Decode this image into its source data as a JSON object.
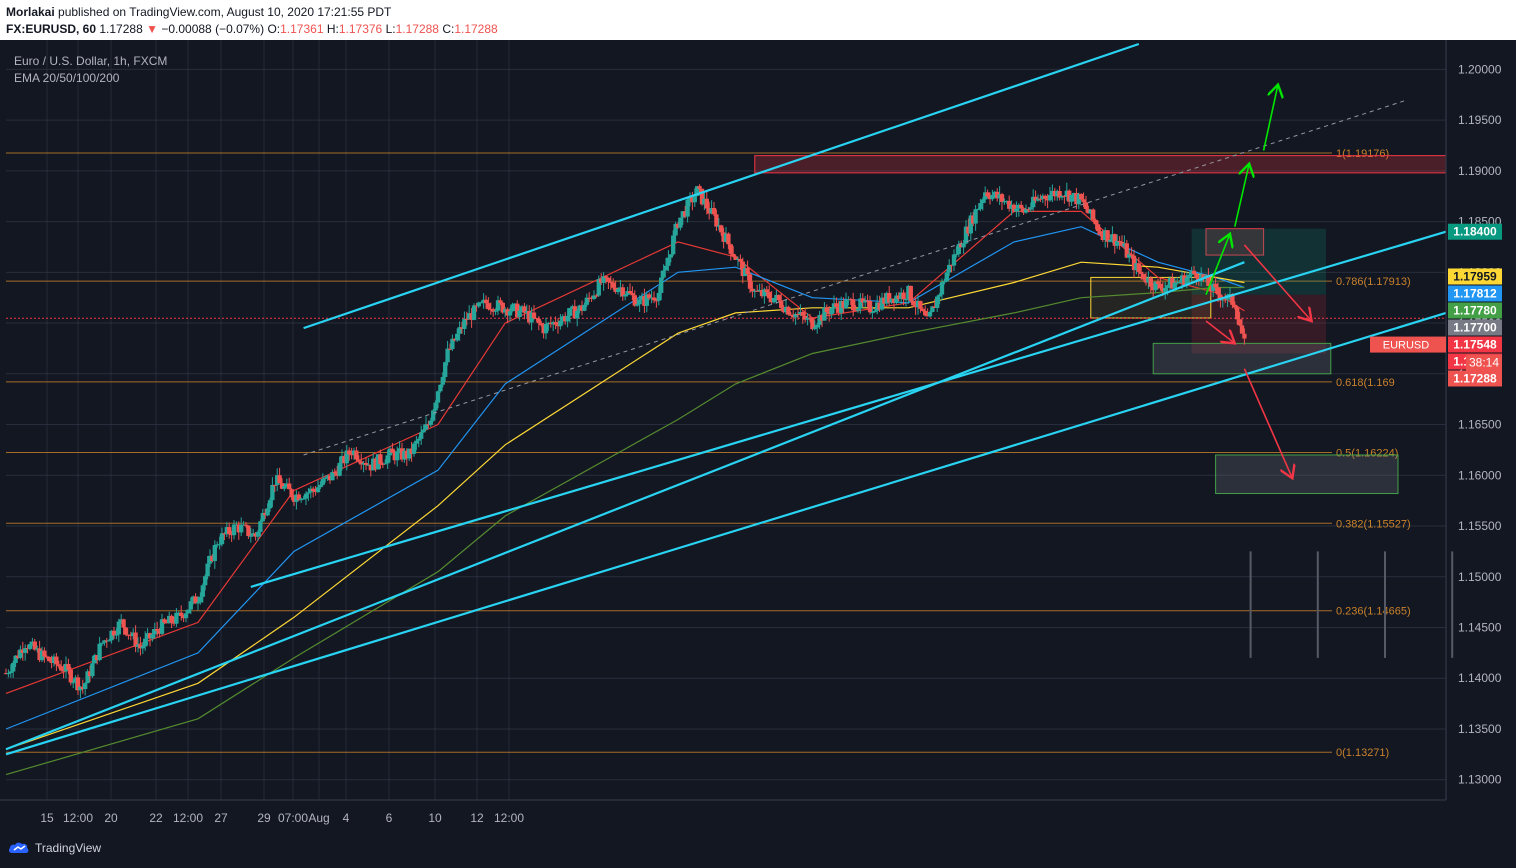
{
  "header": {
    "author": "Morlakai",
    "published_text": "published on TradingView.com, August 10, 2020 17:21:55 PDT",
    "symbol": "FX:EURUSD, 60",
    "last": "1.17288",
    "change": "−0.00088 (−0.07%)",
    "o_label": "O:",
    "o_value": "1.17361",
    "h_label": "H:",
    "h_value": "1.17376",
    "l_label": "L:",
    "l_value": "1.17288",
    "c_label": "C:",
    "c_value": "1.17288"
  },
  "legend": {
    "title": "Euro / U.S. Dollar, 1h, FXCM",
    "indicator": "EMA 20/50/100/200"
  },
  "footer": {
    "brand": "TradingView"
  },
  "colors": {
    "bg": "#131722",
    "grid": "#363c4e",
    "text": "#b2b5be",
    "up": "#26a69a",
    "down": "#ef5350",
    "channel": "#29d3f2",
    "fib": "#c9822b",
    "ema20": "#e53935",
    "ema50": "#2196f3",
    "ema100": "#fdd835",
    "ema200": "#558b2f"
  },
  "chart_data": {
    "type": "candlestick",
    "title": "Euro / U.S. Dollar, 1h, FXCM",
    "ylim": [
      1.128,
      1.2025
    ],
    "y_ticks": [
      "1.20000",
      "1.19500",
      "1.19000",
      "1.18500",
      "1.18000",
      "1.17500",
      "1.17000",
      "1.16500",
      "1.16000",
      "1.15500",
      "1.15000",
      "1.14500",
      "1.14000",
      "1.13500",
      "1.13000"
    ],
    "x_ticks": [
      "15",
      "12:00",
      "20",
      "22",
      "12:00",
      "27",
      "29",
      "07:00",
      "Aug",
      "4",
      "6",
      "10",
      "12",
      "12:00"
    ],
    "price_path": [
      {
        "t": 0,
        "p": 1.1405
      },
      {
        "t": 4,
        "p": 1.1435
      },
      {
        "t": 8,
        "p": 1.142
      },
      {
        "t": 12,
        "p": 1.141
      },
      {
        "t": 16,
        "p": 1.139
      },
      {
        "t": 20,
        "p": 1.1435
      },
      {
        "t": 24,
        "p": 1.1455
      },
      {
        "t": 28,
        "p": 1.143
      },
      {
        "t": 32,
        "p": 1.145
      },
      {
        "t": 36,
        "p": 1.146
      },
      {
        "t": 40,
        "p": 1.148
      },
      {
        "t": 44,
        "p": 1.1535
      },
      {
        "t": 48,
        "p": 1.155
      },
      {
        "t": 52,
        "p": 1.154
      },
      {
        "t": 56,
        "p": 1.1595
      },
      {
        "t": 60,
        "p": 1.158
      },
      {
        "t": 64,
        "p": 1.1585
      },
      {
        "t": 68,
        "p": 1.16
      },
      {
        "t": 72,
        "p": 1.1625
      },
      {
        "t": 76,
        "p": 1.161
      },
      {
        "t": 80,
        "p": 1.162
      },
      {
        "t": 84,
        "p": 1.162
      },
      {
        "t": 88,
        "p": 1.165
      },
      {
        "t": 92,
        "p": 1.172
      },
      {
        "t": 96,
        "p": 1.1755
      },
      {
        "t": 100,
        "p": 1.177
      },
      {
        "t": 104,
        "p": 1.1765
      },
      {
        "t": 108,
        "p": 1.176
      },
      {
        "t": 112,
        "p": 1.1745
      },
      {
        "t": 116,
        "p": 1.1755
      },
      {
        "t": 120,
        "p": 1.1765
      },
      {
        "t": 124,
        "p": 1.179
      },
      {
        "t": 128,
        "p": 1.1785
      },
      {
        "t": 132,
        "p": 1.177
      },
      {
        "t": 136,
        "p": 1.178
      },
      {
        "t": 140,
        "p": 1.185
      },
      {
        "t": 144,
        "p": 1.188
      },
      {
        "t": 148,
        "p": 1.185
      },
      {
        "t": 152,
        "p": 1.1815
      },
      {
        "t": 156,
        "p": 1.178
      },
      {
        "t": 160,
        "p": 1.1775
      },
      {
        "t": 164,
        "p": 1.176
      },
      {
        "t": 168,
        "p": 1.175
      },
      {
        "t": 172,
        "p": 1.1765
      },
      {
        "t": 176,
        "p": 1.177
      },
      {
        "t": 180,
        "p": 1.1765
      },
      {
        "t": 184,
        "p": 1.1775
      },
      {
        "t": 188,
        "p": 1.178
      },
      {
        "t": 192,
        "p": 1.175
      },
      {
        "t": 196,
        "p": 1.18
      },
      {
        "t": 200,
        "p": 1.184
      },
      {
        "t": 204,
        "p": 1.188
      },
      {
        "t": 208,
        "p": 1.187
      },
      {
        "t": 212,
        "p": 1.186
      },
      {
        "t": 216,
        "p": 1.1875
      },
      {
        "t": 220,
        "p": 1.188
      },
      {
        "t": 224,
        "p": 1.187
      },
      {
        "t": 228,
        "p": 1.184
      },
      {
        "t": 232,
        "p": 1.183
      },
      {
        "t": 236,
        "p": 1.18
      },
      {
        "t": 240,
        "p": 1.1785
      },
      {
        "t": 244,
        "p": 1.179
      },
      {
        "t": 248,
        "p": 1.18
      },
      {
        "t": 252,
        "p": 1.178
      },
      {
        "t": 256,
        "p": 1.177
      },
      {
        "t": 258,
        "p": 1.17288
      }
    ],
    "ema": [
      {
        "name": "EMA 20",
        "points": [
          [
            0,
            1.1385
          ],
          [
            40,
            1.1455
          ],
          [
            60,
            1.1585
          ],
          [
            90,
            1.165
          ],
          [
            104,
            1.175
          ],
          [
            140,
            1.183
          ],
          [
            152,
            1.1815
          ],
          [
            168,
            1.1755
          ],
          [
            188,
            1.177
          ],
          [
            210,
            1.186
          ],
          [
            224,
            1.186
          ],
          [
            240,
            1.1795
          ],
          [
            252,
            1.178
          ],
          [
            258,
            1.1762
          ]
        ]
      },
      {
        "name": "EMA 50",
        "points": [
          [
            0,
            1.135
          ],
          [
            40,
            1.1425
          ],
          [
            60,
            1.1525
          ],
          [
            90,
            1.1605
          ],
          [
            104,
            1.169
          ],
          [
            140,
            1.18
          ],
          [
            152,
            1.1805
          ],
          [
            168,
            1.1775
          ],
          [
            188,
            1.177
          ],
          [
            210,
            1.183
          ],
          [
            224,
            1.1845
          ],
          [
            240,
            1.181
          ],
          [
            252,
            1.1795
          ],
          [
            258,
            1.1785
          ]
        ]
      },
      {
        "name": "EMA 100",
        "points": [
          [
            0,
            1.133
          ],
          [
            40,
            1.1395
          ],
          [
            60,
            1.146
          ],
          [
            90,
            1.157
          ],
          [
            104,
            1.163
          ],
          [
            140,
            1.174
          ],
          [
            152,
            1.176
          ],
          [
            168,
            1.1765
          ],
          [
            188,
            1.1765
          ],
          [
            210,
            1.179
          ],
          [
            224,
            1.181
          ],
          [
            240,
            1.1805
          ],
          [
            252,
            1.1795
          ],
          [
            258,
            1.179
          ]
        ]
      },
      {
        "name": "EMA 200",
        "points": [
          [
            0,
            1.1305
          ],
          [
            40,
            1.136
          ],
          [
            60,
            1.142
          ],
          [
            90,
            1.1505
          ],
          [
            104,
            1.156
          ],
          [
            140,
            1.1655
          ],
          [
            152,
            1.169
          ],
          [
            168,
            1.172
          ],
          [
            188,
            1.174
          ],
          [
            210,
            1.176
          ],
          [
            224,
            1.1775
          ],
          [
            240,
            1.178
          ],
          [
            252,
            1.1785
          ],
          [
            258,
            1.1785
          ]
        ]
      }
    ],
    "fib_levels": [
      {
        "label": "1(1.19176)",
        "value": 1.19176
      },
      {
        "label": "0.786(1.17913)",
        "value": 1.17913
      },
      {
        "label": "0.618(1.169",
        "value": 1.1692
      },
      {
        "label": "0.5(1.16224)",
        "value": 1.16224
      },
      {
        "label": "0.382(1.15527)",
        "value": 1.15527
      },
      {
        "label": "0.236(1.14665)",
        "value": 1.14665
      },
      {
        "label": "0(1.13271)",
        "value": 1.13271
      }
    ],
    "price_tags": [
      {
        "text": "1.18400",
        "value": 1.184,
        "bg": "#089981",
        "fg": "#ffffff"
      },
      {
        "text": "1.17959",
        "value": 1.17959,
        "bg": "#fdd835",
        "fg": "#131722"
      },
      {
        "text": "1.17812",
        "value": 1.17812,
        "bg": "#2196f3",
        "fg": "#ffffff"
      },
      {
        "text": "1.17780",
        "value": 1.1778,
        "bg": "#43a047",
        "fg": "#ffffff"
      },
      {
        "text": "1.17700",
        "value": 1.177,
        "bg": "#787b86",
        "fg": "#ffffff"
      },
      {
        "text": "1.17548",
        "value": 1.17548,
        "bg": "#f23645",
        "fg": "#ffffff"
      },
      {
        "text": "1.17300",
        "value": 1.173,
        "bg": "#f23645",
        "fg": "#ffffff"
      },
      {
        "text": "1.17288",
        "value": 1.17288,
        "bg": "#ef5350",
        "fg": "#ffffff"
      }
    ],
    "symbol_tag": "EURUSD",
    "countdown": "38:14"
  }
}
